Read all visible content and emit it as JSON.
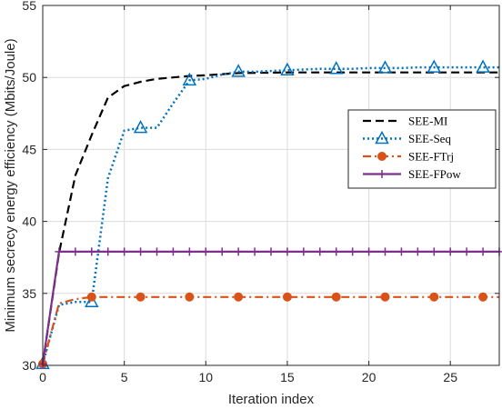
{
  "chart_data": {
    "type": "line",
    "title": "",
    "xlabel": "Iteration index",
    "ylabel": "Minimum secrecy energy efficiency (Mbits/Joule)",
    "xlim": [
      0,
      28
    ],
    "ylim": [
      30,
      55
    ],
    "xticks": [
      0,
      5,
      10,
      15,
      20,
      25
    ],
    "yticks": [
      30,
      35,
      40,
      45,
      50,
      55
    ],
    "grid": true,
    "legend_position": "right",
    "series": [
      {
        "name": "SEE-MI",
        "color": "#000000",
        "style": "dashed",
        "marker": "none",
        "x": [
          0,
          1,
          2,
          3,
          4,
          5,
          6,
          7,
          8,
          9,
          10,
          12,
          15,
          20,
          25,
          28
        ],
        "y": [
          30.1,
          37.8,
          43.2,
          46.0,
          48.6,
          49.4,
          49.7,
          49.9,
          50.0,
          50.1,
          50.15,
          50.3,
          50.35,
          50.35,
          50.35,
          50.35
        ]
      },
      {
        "name": "SEE-Seq",
        "color": "#0072BD",
        "style": "dotted",
        "marker": "triangle",
        "x": [
          0,
          1,
          2,
          3,
          4,
          5,
          6,
          7,
          8,
          9,
          10,
          11,
          12,
          13,
          14,
          15,
          16,
          17,
          18,
          19,
          20,
          21,
          22,
          23,
          24,
          25,
          26,
          27,
          28
        ],
        "y": [
          30.1,
          34.2,
          34.4,
          34.4,
          43.0,
          46.3,
          46.5,
          46.5,
          48.2,
          49.8,
          49.9,
          50.2,
          50.4,
          50.4,
          50.45,
          50.5,
          50.55,
          50.6,
          50.6,
          50.6,
          50.65,
          50.65,
          50.65,
          50.7,
          50.7,
          50.7,
          50.7,
          50.7,
          50.7
        ],
        "marker_x": [
          0,
          3,
          6,
          9,
          12,
          15,
          18,
          21,
          24,
          27
        ]
      },
      {
        "name": "SEE-FTrj",
        "color": "#D95319",
        "style": "dashdot",
        "marker": "circle",
        "x": [
          0,
          1,
          2,
          3,
          4,
          5,
          6,
          7,
          8,
          9,
          10,
          11,
          12,
          13,
          14,
          15,
          16,
          17,
          18,
          19,
          20,
          21,
          22,
          23,
          24,
          25,
          26,
          27,
          28
        ],
        "y": [
          30.1,
          34.3,
          34.6,
          34.75,
          34.75,
          34.75,
          34.75,
          34.75,
          34.75,
          34.75,
          34.75,
          34.75,
          34.75,
          34.75,
          34.75,
          34.75,
          34.75,
          34.75,
          34.75,
          34.75,
          34.75,
          34.75,
          34.75,
          34.75,
          34.75,
          34.75,
          34.75,
          34.75,
          34.75
        ],
        "marker_x": [
          0,
          3,
          6,
          9,
          12,
          15,
          18,
          21,
          24,
          27
        ]
      },
      {
        "name": "SEE-FPow",
        "color": "#7E2F8E",
        "style": "solid",
        "marker": "plus",
        "x": [
          0,
          1,
          2,
          3,
          4,
          5,
          6,
          7,
          8,
          9,
          10,
          11,
          12,
          13,
          14,
          15,
          16,
          17,
          18,
          19,
          20,
          21,
          22,
          23,
          24,
          25,
          26,
          27,
          28
        ],
        "y": [
          30.1,
          37.9,
          37.9,
          37.9,
          37.9,
          37.9,
          37.9,
          37.9,
          37.9,
          37.9,
          37.9,
          37.9,
          37.9,
          37.9,
          37.9,
          37.9,
          37.9,
          37.9,
          37.9,
          37.9,
          37.9,
          37.9,
          37.9,
          37.9,
          37.9,
          37.9,
          37.9,
          37.9,
          37.9
        ],
        "marker_x": [
          0,
          1,
          2,
          3,
          4,
          5,
          6,
          7,
          8,
          9,
          10,
          11,
          12,
          13,
          14,
          15,
          16,
          17,
          18,
          19,
          20,
          21,
          22,
          23,
          24,
          25,
          26,
          27,
          28
        ]
      }
    ]
  }
}
